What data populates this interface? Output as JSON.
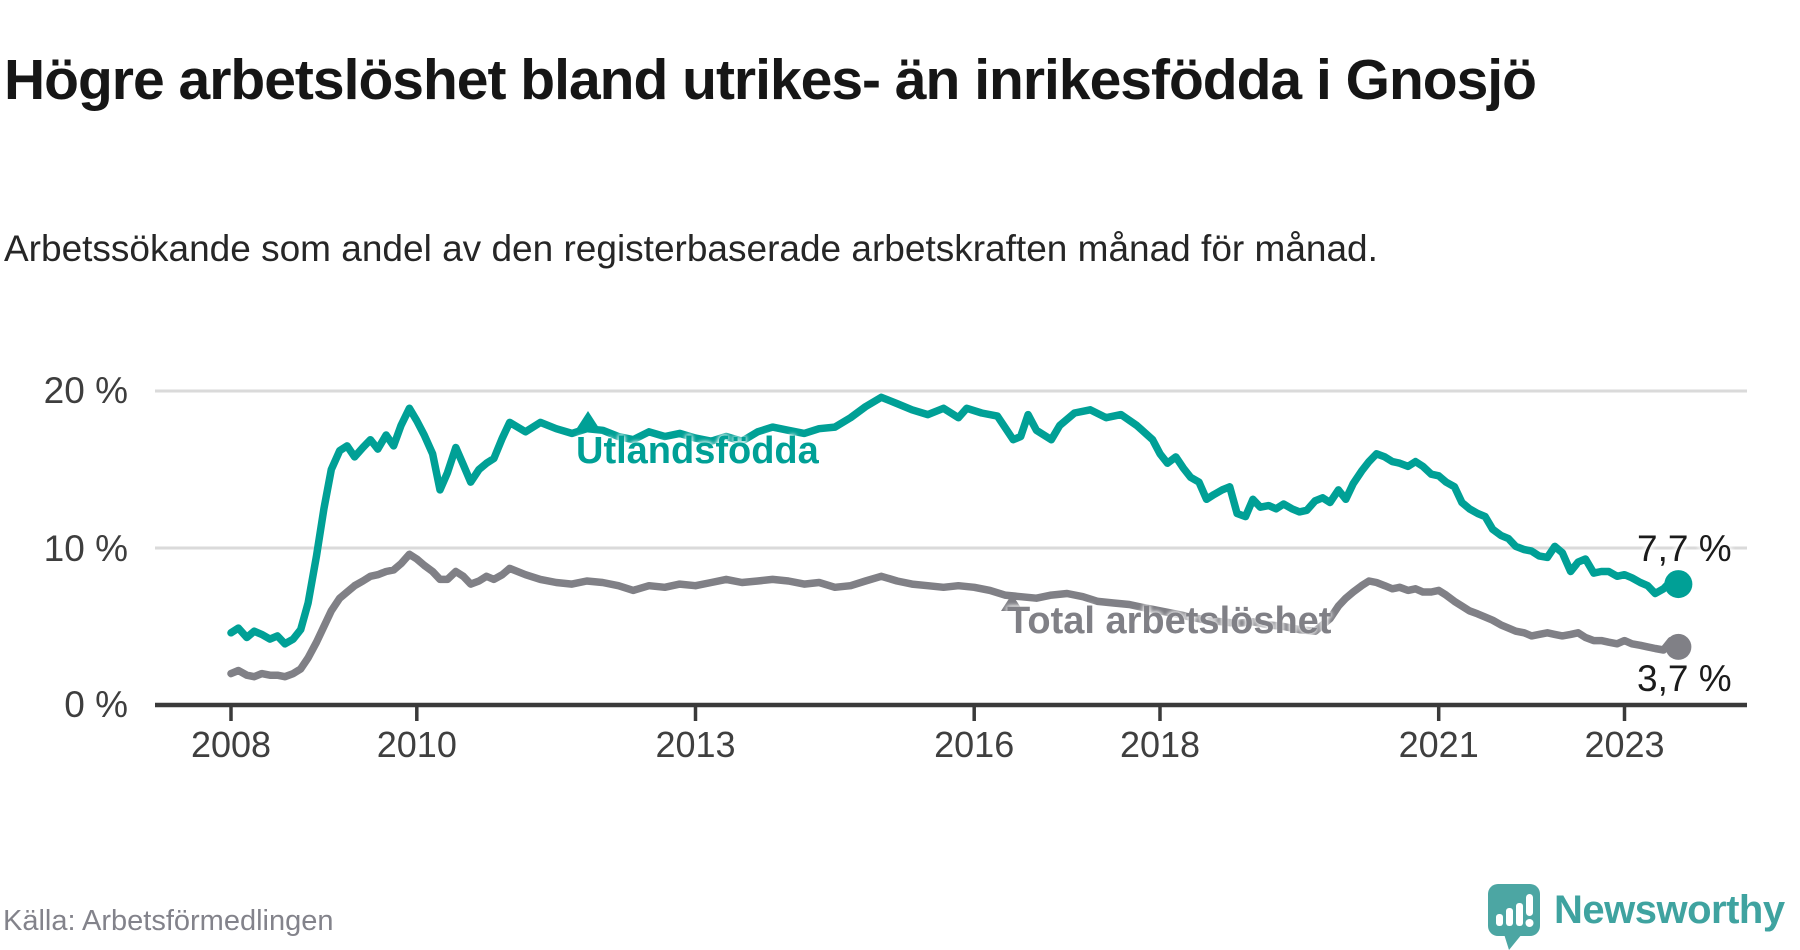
{
  "header": {
    "title": "Högre arbetslöshet bland utrikes- än inrikesfödda i Gnosjö",
    "subtitle": "Arbetssökande som andel av den registerbaserade arbetskraften månad för månad."
  },
  "footer": {
    "source": "Källa: Arbetsförmedlingen",
    "brand": "Newsworthy"
  },
  "colors": {
    "series_foreign_born": "#00A096",
    "series_total": "#808086",
    "gridline": "#dadada",
    "axis": "#3a3a3a",
    "axis_text": "#3f3f3f",
    "end_label_text": "#1b1b1b",
    "logo_teal": "#4CA6A3",
    "brand_text": "#3fa3a0",
    "source_text": "#83838b"
  },
  "chart_data": {
    "type": "line",
    "title": "Högre arbetslöshet bland utrikes- än inrikesfödda i Gnosjö",
    "subtitle": "Arbetssökande som andel av den registerbaserade arbetskraften månad för månad.",
    "unit": "%",
    "frequency": "monthly, Jan 2008 – Aug 2023 (values estimated from plot)",
    "grid": true,
    "legend_position": "inline-labels-on-lines",
    "x_axis": {
      "ticks": [
        2008,
        2010,
        2013,
        2016,
        2018,
        2021,
        2023
      ],
      "range": [
        2008.0,
        2023.58
      ]
    },
    "y_axis": {
      "ticks": [
        {
          "value": 20,
          "label": "20 %"
        },
        {
          "value": 10,
          "label": "10 %"
        },
        {
          "value": 0,
          "label": "0 %"
        }
      ],
      "range": [
        0,
        21.5
      ]
    },
    "series": [
      {
        "name": "Utlandsfödda",
        "color": "#00A096",
        "end_label": "7,7 %",
        "end_value": 7.7,
        "points": [
          [
            2008.0,
            4.6
          ],
          [
            2008.08,
            4.9
          ],
          [
            2008.17,
            4.3
          ],
          [
            2008.25,
            4.7
          ],
          [
            2008.33,
            4.5
          ],
          [
            2008.42,
            4.2
          ],
          [
            2008.5,
            4.4
          ],
          [
            2008.58,
            3.9
          ],
          [
            2008.67,
            4.2
          ],
          [
            2008.75,
            4.8
          ],
          [
            2008.83,
            6.5
          ],
          [
            2008.92,
            9.5
          ],
          [
            2009.0,
            12.5
          ],
          [
            2009.08,
            15.0
          ],
          [
            2009.17,
            16.2
          ],
          [
            2009.25,
            16.5
          ],
          [
            2009.33,
            15.8
          ],
          [
            2009.42,
            16.4
          ],
          [
            2009.5,
            16.9
          ],
          [
            2009.58,
            16.3
          ],
          [
            2009.67,
            17.2
          ],
          [
            2009.75,
            16.5
          ],
          [
            2009.83,
            17.8
          ],
          [
            2009.92,
            18.9
          ],
          [
            2010.0,
            18.1
          ],
          [
            2010.08,
            17.2
          ],
          [
            2010.17,
            16.0
          ],
          [
            2010.25,
            13.7
          ],
          [
            2010.33,
            14.8
          ],
          [
            2010.42,
            16.4
          ],
          [
            2010.5,
            15.3
          ],
          [
            2010.58,
            14.2
          ],
          [
            2010.67,
            15.0
          ],
          [
            2010.75,
            15.4
          ],
          [
            2010.83,
            15.7
          ],
          [
            2010.92,
            17.0
          ],
          [
            2011.0,
            18.0
          ],
          [
            2011.17,
            17.4
          ],
          [
            2011.33,
            18.0
          ],
          [
            2011.5,
            17.6
          ],
          [
            2011.67,
            17.3
          ],
          [
            2011.83,
            17.6
          ],
          [
            2012.0,
            17.5
          ],
          [
            2012.17,
            17.1
          ],
          [
            2012.33,
            16.9
          ],
          [
            2012.5,
            17.4
          ],
          [
            2012.67,
            17.1
          ],
          [
            2012.83,
            17.3
          ],
          [
            2013.0,
            17.0
          ],
          [
            2013.17,
            16.8
          ],
          [
            2013.33,
            17.1
          ],
          [
            2013.5,
            16.8
          ],
          [
            2013.67,
            17.4
          ],
          [
            2013.83,
            17.7
          ],
          [
            2014.0,
            17.5
          ],
          [
            2014.17,
            17.3
          ],
          [
            2014.33,
            17.6
          ],
          [
            2014.5,
            17.7
          ],
          [
            2014.67,
            18.3
          ],
          [
            2014.83,
            19.0
          ],
          [
            2015.0,
            19.6
          ],
          [
            2015.17,
            19.2
          ],
          [
            2015.33,
            18.8
          ],
          [
            2015.5,
            18.5
          ],
          [
            2015.67,
            18.9
          ],
          [
            2015.83,
            18.3
          ],
          [
            2015.92,
            18.9
          ],
          [
            2016.08,
            18.6
          ],
          [
            2016.25,
            18.4
          ],
          [
            2016.42,
            16.9
          ],
          [
            2016.5,
            17.1
          ],
          [
            2016.58,
            18.5
          ],
          [
            2016.67,
            17.5
          ],
          [
            2016.83,
            16.9
          ],
          [
            2016.92,
            17.8
          ],
          [
            2017.08,
            18.6
          ],
          [
            2017.25,
            18.8
          ],
          [
            2017.42,
            18.3
          ],
          [
            2017.58,
            18.5
          ],
          [
            2017.75,
            17.8
          ],
          [
            2017.92,
            16.9
          ],
          [
            2018.0,
            16.0
          ],
          [
            2018.08,
            15.4
          ],
          [
            2018.17,
            15.8
          ],
          [
            2018.25,
            15.1
          ],
          [
            2018.33,
            14.5
          ],
          [
            2018.42,
            14.2
          ],
          [
            2018.5,
            13.1
          ],
          [
            2018.58,
            13.4
          ],
          [
            2018.67,
            13.7
          ],
          [
            2018.75,
            13.9
          ],
          [
            2018.83,
            12.2
          ],
          [
            2018.92,
            12.0
          ],
          [
            2019.0,
            13.1
          ],
          [
            2019.08,
            12.6
          ],
          [
            2019.17,
            12.7
          ],
          [
            2019.25,
            12.5
          ],
          [
            2019.33,
            12.8
          ],
          [
            2019.42,
            12.5
          ],
          [
            2019.5,
            12.3
          ],
          [
            2019.58,
            12.4
          ],
          [
            2019.67,
            13.0
          ],
          [
            2019.75,
            13.2
          ],
          [
            2019.83,
            12.9
          ],
          [
            2019.92,
            13.7
          ],
          [
            2020.0,
            13.1
          ],
          [
            2020.08,
            14.1
          ],
          [
            2020.17,
            14.9
          ],
          [
            2020.25,
            15.5
          ],
          [
            2020.33,
            16.0
          ],
          [
            2020.42,
            15.8
          ],
          [
            2020.5,
            15.5
          ],
          [
            2020.58,
            15.4
          ],
          [
            2020.67,
            15.2
          ],
          [
            2020.75,
            15.5
          ],
          [
            2020.83,
            15.2
          ],
          [
            2020.92,
            14.7
          ],
          [
            2021.0,
            14.6
          ],
          [
            2021.08,
            14.2
          ],
          [
            2021.17,
            13.9
          ],
          [
            2021.25,
            12.9
          ],
          [
            2021.33,
            12.5
          ],
          [
            2021.42,
            12.2
          ],
          [
            2021.5,
            12.0
          ],
          [
            2021.58,
            11.2
          ],
          [
            2021.67,
            10.8
          ],
          [
            2021.75,
            10.6
          ],
          [
            2021.83,
            10.1
          ],
          [
            2021.92,
            9.9
          ],
          [
            2022.0,
            9.8
          ],
          [
            2022.08,
            9.5
          ],
          [
            2022.17,
            9.4
          ],
          [
            2022.25,
            10.1
          ],
          [
            2022.33,
            9.7
          ],
          [
            2022.42,
            8.5
          ],
          [
            2022.5,
            9.1
          ],
          [
            2022.58,
            9.3
          ],
          [
            2022.67,
            8.4
          ],
          [
            2022.75,
            8.5
          ],
          [
            2022.83,
            8.5
          ],
          [
            2022.92,
            8.2
          ],
          [
            2023.0,
            8.3
          ],
          [
            2023.08,
            8.1
          ],
          [
            2023.17,
            7.8
          ],
          [
            2023.25,
            7.6
          ],
          [
            2023.33,
            7.1
          ],
          [
            2023.42,
            7.4
          ],
          [
            2023.5,
            7.9
          ],
          [
            2023.58,
            7.7
          ]
        ]
      },
      {
        "name": "Total arbetslöshet",
        "color": "#808086",
        "end_label": "3,7 %",
        "end_value": 3.7,
        "points": [
          [
            2008.0,
            2.0
          ],
          [
            2008.08,
            2.2
          ],
          [
            2008.17,
            1.9
          ],
          [
            2008.25,
            1.8
          ],
          [
            2008.33,
            2.0
          ],
          [
            2008.42,
            1.9
          ],
          [
            2008.5,
            1.9
          ],
          [
            2008.58,
            1.8
          ],
          [
            2008.67,
            2.0
          ],
          [
            2008.75,
            2.3
          ],
          [
            2008.83,
            3.0
          ],
          [
            2008.92,
            4.0
          ],
          [
            2009.0,
            5.0
          ],
          [
            2009.08,
            6.0
          ],
          [
            2009.17,
            6.8
          ],
          [
            2009.25,
            7.2
          ],
          [
            2009.33,
            7.6
          ],
          [
            2009.42,
            7.9
          ],
          [
            2009.5,
            8.2
          ],
          [
            2009.58,
            8.3
          ],
          [
            2009.67,
            8.5
          ],
          [
            2009.75,
            8.6
          ],
          [
            2009.83,
            9.0
          ],
          [
            2009.92,
            9.6
          ],
          [
            2010.0,
            9.3
          ],
          [
            2010.08,
            8.9
          ],
          [
            2010.17,
            8.5
          ],
          [
            2010.25,
            8.0
          ],
          [
            2010.33,
            8.0
          ],
          [
            2010.42,
            8.5
          ],
          [
            2010.5,
            8.2
          ],
          [
            2010.58,
            7.7
          ],
          [
            2010.67,
            7.9
          ],
          [
            2010.75,
            8.2
          ],
          [
            2010.83,
            8.0
          ],
          [
            2010.92,
            8.3
          ],
          [
            2011.0,
            8.7
          ],
          [
            2011.17,
            8.3
          ],
          [
            2011.33,
            8.0
          ],
          [
            2011.5,
            7.8
          ],
          [
            2011.67,
            7.7
          ],
          [
            2011.83,
            7.9
          ],
          [
            2012.0,
            7.8
          ],
          [
            2012.17,
            7.6
          ],
          [
            2012.33,
            7.3
          ],
          [
            2012.5,
            7.6
          ],
          [
            2012.67,
            7.5
          ],
          [
            2012.83,
            7.7
          ],
          [
            2013.0,
            7.6
          ],
          [
            2013.17,
            7.8
          ],
          [
            2013.33,
            8.0
          ],
          [
            2013.5,
            7.8
          ],
          [
            2013.67,
            7.9
          ],
          [
            2013.83,
            8.0
          ],
          [
            2014.0,
            7.9
          ],
          [
            2014.17,
            7.7
          ],
          [
            2014.33,
            7.8
          ],
          [
            2014.5,
            7.5
          ],
          [
            2014.67,
            7.6
          ],
          [
            2014.83,
            7.9
          ],
          [
            2015.0,
            8.2
          ],
          [
            2015.17,
            7.9
          ],
          [
            2015.33,
            7.7
          ],
          [
            2015.5,
            7.6
          ],
          [
            2015.67,
            7.5
          ],
          [
            2015.83,
            7.6
          ],
          [
            2016.0,
            7.5
          ],
          [
            2016.17,
            7.3
          ],
          [
            2016.33,
            7.0
          ],
          [
            2016.5,
            6.9
          ],
          [
            2016.67,
            6.8
          ],
          [
            2016.83,
            7.0
          ],
          [
            2017.0,
            7.1
          ],
          [
            2017.17,
            6.9
          ],
          [
            2017.33,
            6.6
          ],
          [
            2017.5,
            6.5
          ],
          [
            2017.67,
            6.4
          ],
          [
            2017.83,
            6.2
          ],
          [
            2018.0,
            6.0
          ],
          [
            2018.17,
            5.8
          ],
          [
            2018.33,
            5.6
          ],
          [
            2018.5,
            5.4
          ],
          [
            2018.67,
            5.3
          ],
          [
            2018.83,
            5.2
          ],
          [
            2019.0,
            5.3
          ],
          [
            2019.17,
            5.1
          ],
          [
            2019.33,
            5.0
          ],
          [
            2019.5,
            4.8
          ],
          [
            2019.67,
            4.7
          ],
          [
            2019.83,
            5.5
          ],
          [
            2019.92,
            6.3
          ],
          [
            2020.0,
            6.8
          ],
          [
            2020.08,
            7.2
          ],
          [
            2020.17,
            7.6
          ],
          [
            2020.25,
            7.9
          ],
          [
            2020.33,
            7.8
          ],
          [
            2020.42,
            7.6
          ],
          [
            2020.5,
            7.4
          ],
          [
            2020.58,
            7.5
          ],
          [
            2020.67,
            7.3
          ],
          [
            2020.75,
            7.4
          ],
          [
            2020.83,
            7.2
          ],
          [
            2020.92,
            7.2
          ],
          [
            2021.0,
            7.3
          ],
          [
            2021.08,
            7.0
          ],
          [
            2021.17,
            6.6
          ],
          [
            2021.25,
            6.3
          ],
          [
            2021.33,
            6.0
          ],
          [
            2021.42,
            5.8
          ],
          [
            2021.5,
            5.6
          ],
          [
            2021.58,
            5.4
          ],
          [
            2021.67,
            5.1
          ],
          [
            2021.75,
            4.9
          ],
          [
            2021.83,
            4.7
          ],
          [
            2021.92,
            4.6
          ],
          [
            2022.0,
            4.4
          ],
          [
            2022.08,
            4.5
          ],
          [
            2022.17,
            4.6
          ],
          [
            2022.25,
            4.5
          ],
          [
            2022.33,
            4.4
          ],
          [
            2022.42,
            4.5
          ],
          [
            2022.5,
            4.6
          ],
          [
            2022.58,
            4.3
          ],
          [
            2022.67,
            4.1
          ],
          [
            2022.75,
            4.1
          ],
          [
            2022.83,
            4.0
          ],
          [
            2022.92,
            3.9
          ],
          [
            2023.0,
            4.1
          ],
          [
            2023.08,
            3.9
          ],
          [
            2023.17,
            3.8
          ],
          [
            2023.25,
            3.7
          ],
          [
            2023.33,
            3.6
          ],
          [
            2023.42,
            3.5
          ],
          [
            2023.5,
            4.1
          ],
          [
            2023.58,
            3.7
          ]
        ]
      }
    ]
  }
}
